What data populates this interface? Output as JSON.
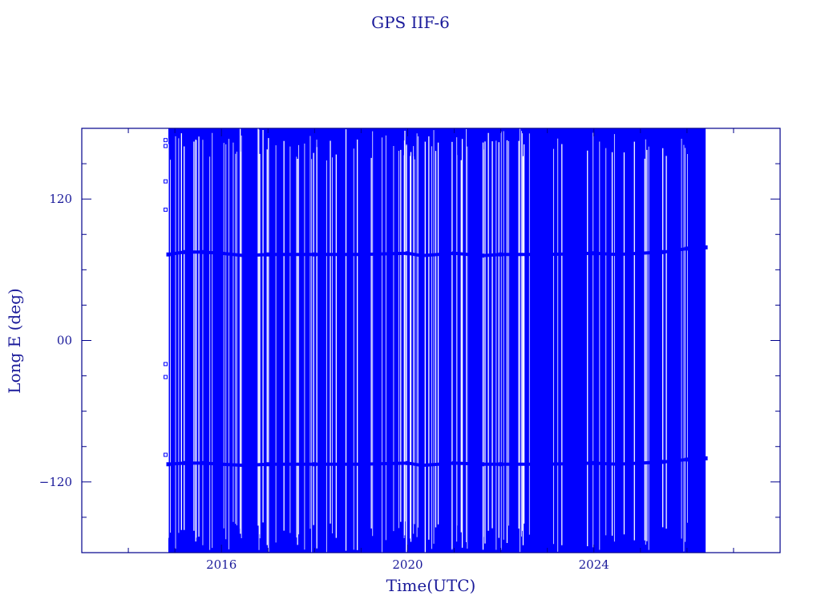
{
  "chart_data": {
    "type": "scatter",
    "title": "GPS IIF-6",
    "xlabel": "Time(UTC)",
    "ylabel": "Long E (deg)",
    "xlim": [
      2013.0,
      2028.0
    ],
    "ylim": [
      -180,
      180
    ],
    "x_ticks": [
      2016,
      2020,
      2024
    ],
    "x_tick_labels": [
      "2016",
      "2020",
      "2024"
    ],
    "y_ticks": [
      120,
      0,
      -120
    ],
    "y_tick_labels": [
      "120",
      "00",
      "−120"
    ],
    "grid": false,
    "legend": "none",
    "color": "#0000ff",
    "axis_color": "#00008b",
    "data_span": [
      2014.86,
      2026.4
    ],
    "dense_wrap_region": {
      "x_range": [
        2014.86,
        2026.4
      ],
      "y_range": [
        -180,
        180
      ],
      "note_shown": "longitude wraps densely across full range"
    },
    "series": [
      {
        "x": [
          2014.86,
          2015.2,
          2015.6,
          2016.0,
          2016.5,
          2017.0,
          2018.0,
          2019.0,
          2020.0,
          2020.3,
          2021.0,
          2021.6,
          2022.0,
          2023.0,
          2024.0,
          2024.5,
          2025.0,
          2025.5,
          2026.0,
          2026.4
        ],
        "y": [
          73,
          75,
          75,
          74,
          72,
          73,
          73,
          73,
          74,
          72,
          74,
          72,
          73,
          73,
          74,
          73,
          74,
          75,
          78,
          79
        ]
      },
      {
        "x": [
          2014.86,
          2015.2,
          2015.6,
          2016.0,
          2016.5,
          2017.0,
          2018.0,
          2019.0,
          2020.0,
          2020.3,
          2021.0,
          2021.6,
          2022.0,
          2023.0,
          2024.0,
          2024.5,
          2025.0,
          2025.5,
          2026.0,
          2026.4
        ],
        "y": [
          -105,
          -104,
          -104,
          -105,
          -106,
          -105,
          -105,
          -105,
          -104,
          -106,
          -104,
          -105,
          -105,
          -105,
          -104,
          -105,
          -104,
          -103,
          -101,
          -100
        ]
      },
      {
        "x": [
          2014.8,
          2014.8,
          2014.8,
          2014.8,
          2014.8,
          2014.8,
          2014.8
        ],
        "y": [
          170,
          165,
          135,
          111,
          -20,
          -31,
          -97
        ]
      }
    ]
  }
}
